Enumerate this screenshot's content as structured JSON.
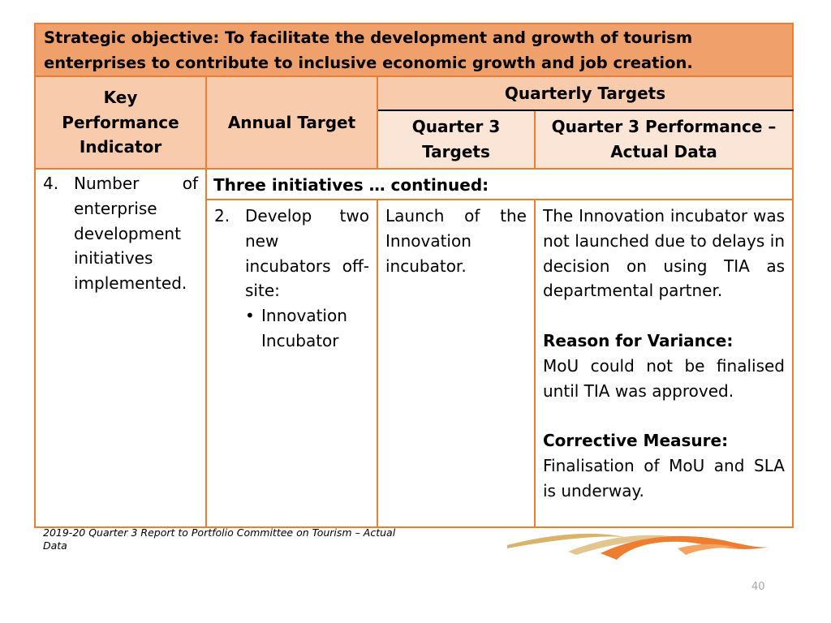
{
  "table": {
    "objective": "Strategic objective: To facilitate the development and growth of tourism enterprises to contribute to inclusive economic growth and job creation.",
    "headers": {
      "kpi": "Key Performance Indicator",
      "annual_target": "Annual Target",
      "quarterly_targets": "Quarterly Targets",
      "q3_targets": "Quarter 3 Targets",
      "q3_performance": "Quarter 3 Performance – Actual Data"
    },
    "kpi_number": "4.",
    "kpi_text": "Number of enterprise development initiatives implemented.",
    "continued": "Three initiatives … continued:",
    "annual_item_number": "2.",
    "annual_item_text": "Develop two new incubators off-site:",
    "annual_bullet": "Innovation Incubator",
    "q3_target_text": "Launch of the Innovation incubator.",
    "performance_text": "The Innovation incubator was not launched due to delays in decision on using TIA as departmental partner.",
    "variance_heading": "Reason for Variance:",
    "variance_text": "MoU could not be finalised until TIA was approved.",
    "corrective_heading": "Corrective Measure:",
    "corrective_text": "Finalisation of MoU and SLA is underway."
  },
  "footer": "2019-20 Quarter 3 Report to Portfolio Committee on Tourism – Actual Data",
  "page_number": "40",
  "colors": {
    "border": "#ed7d31",
    "objective_bg": "#f0a06a",
    "header_bg": "#f8cbad",
    "subheader_bg": "#fbe5d6",
    "logo_orange": "#ed7d31",
    "logo_gold": "#d9b36a"
  }
}
